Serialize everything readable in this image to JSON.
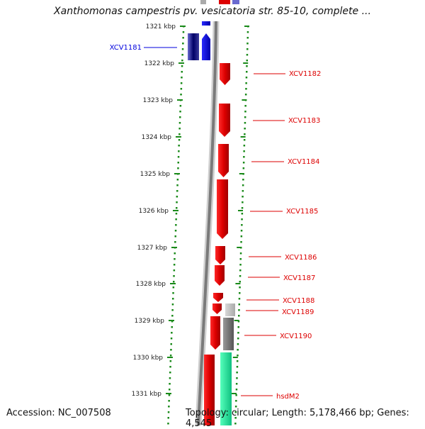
{
  "title": "Xanthomonas campestris pv. vesicatoria str. 85-10, complete ...",
  "footer": {
    "accession": "Accession: NC_007508",
    "summary": "Topology: circular; Length: 5,178,466 bp; Genes: 4,545"
  },
  "ruler": [
    "1321 kbp",
    "1322 kbp",
    "1323 kbp",
    "1324 kbp",
    "1325 kbp",
    "1326 kbp",
    "1327 kbp",
    "1328 kbp",
    "1329 kbp",
    "1330 kbp",
    "1331 kbp"
  ],
  "genes": [
    {
      "name": "XCV1181",
      "strand": "minus",
      "color": "#0000dd"
    },
    {
      "name": "XCV1182",
      "strand": "plus",
      "color": "#dd0000"
    },
    {
      "name": "XCV1183",
      "strand": "plus",
      "color": "#dd0000"
    },
    {
      "name": "XCV1184",
      "strand": "plus",
      "color": "#dd0000"
    },
    {
      "name": "XCV1185",
      "strand": "plus",
      "color": "#dd0000"
    },
    {
      "name": "XCV1186",
      "strand": "plus",
      "color": "#dd0000"
    },
    {
      "name": "XCV1187",
      "strand": "plus",
      "color": "#dd0000"
    },
    {
      "name": "XCV1188",
      "strand": "plus",
      "color": "#dd0000"
    },
    {
      "name": "XCV1189",
      "strand": "plus",
      "color": "#dd0000"
    },
    {
      "name": "XCV1190",
      "strand": "plus",
      "color": "#dd0000"
    },
    {
      "name": "hsdM2",
      "strand": "plus",
      "color": "#dd0000"
    }
  ],
  "colors": {
    "forward_gene": "#dd0000",
    "reverse_gene": "#0000dd",
    "backbone": "#888888",
    "ruler": "#1a8a1a",
    "grey_feature": "#777777",
    "green_feature": "#22ee99"
  }
}
